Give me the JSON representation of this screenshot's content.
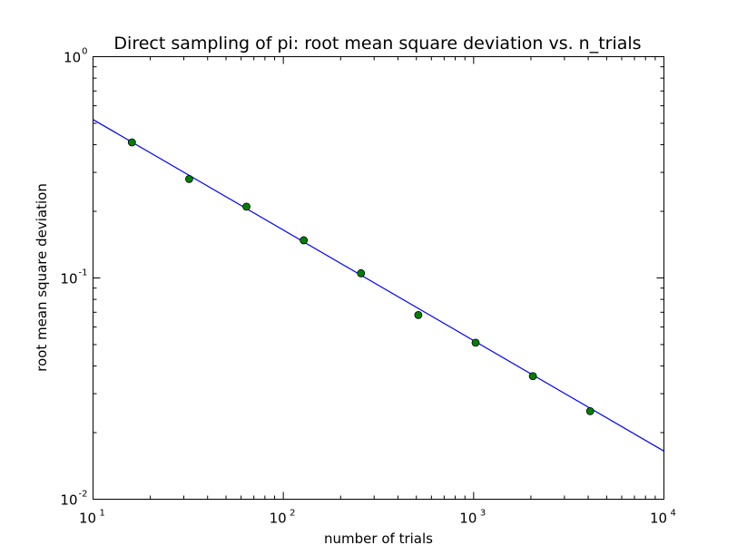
{
  "chart_data": {
    "type": "scatter",
    "title": "Direct sampling of pi: root mean square deviation vs. n_trials",
    "xlabel": "number of trials",
    "ylabel": "root mean square deviation",
    "xscale": "log",
    "yscale": "log",
    "xlim": [
      10,
      10000
    ],
    "ylim": [
      0.01,
      1
    ],
    "grid": false,
    "x_ticks": [
      {
        "base": "10",
        "exp": "1",
        "value": 10
      },
      {
        "base": "10",
        "exp": "2",
        "value": 100
      },
      {
        "base": "10",
        "exp": "3",
        "value": 1000
      },
      {
        "base": "10",
        "exp": "4",
        "value": 10000
      }
    ],
    "y_ticks": [
      {
        "base": "10",
        "exp": "-2",
        "value": 0.01
      },
      {
        "base": "10",
        "exp": "-1",
        "value": 0.1
      },
      {
        "base": "10",
        "exp": "0",
        "value": 1
      }
    ],
    "series": [
      {
        "kind": "points",
        "color": "#008000",
        "x": [
          16,
          32,
          64,
          128,
          256,
          512,
          1024,
          2048,
          4096
        ],
        "y": [
          0.41,
          0.28,
          0.21,
          0.148,
          0.105,
          0.068,
          0.051,
          0.036,
          0.025
        ]
      },
      {
        "kind": "line",
        "color": "#0000ff",
        "x": [
          10,
          10000
        ],
        "y": [
          0.52,
          0.0165
        ]
      }
    ]
  }
}
